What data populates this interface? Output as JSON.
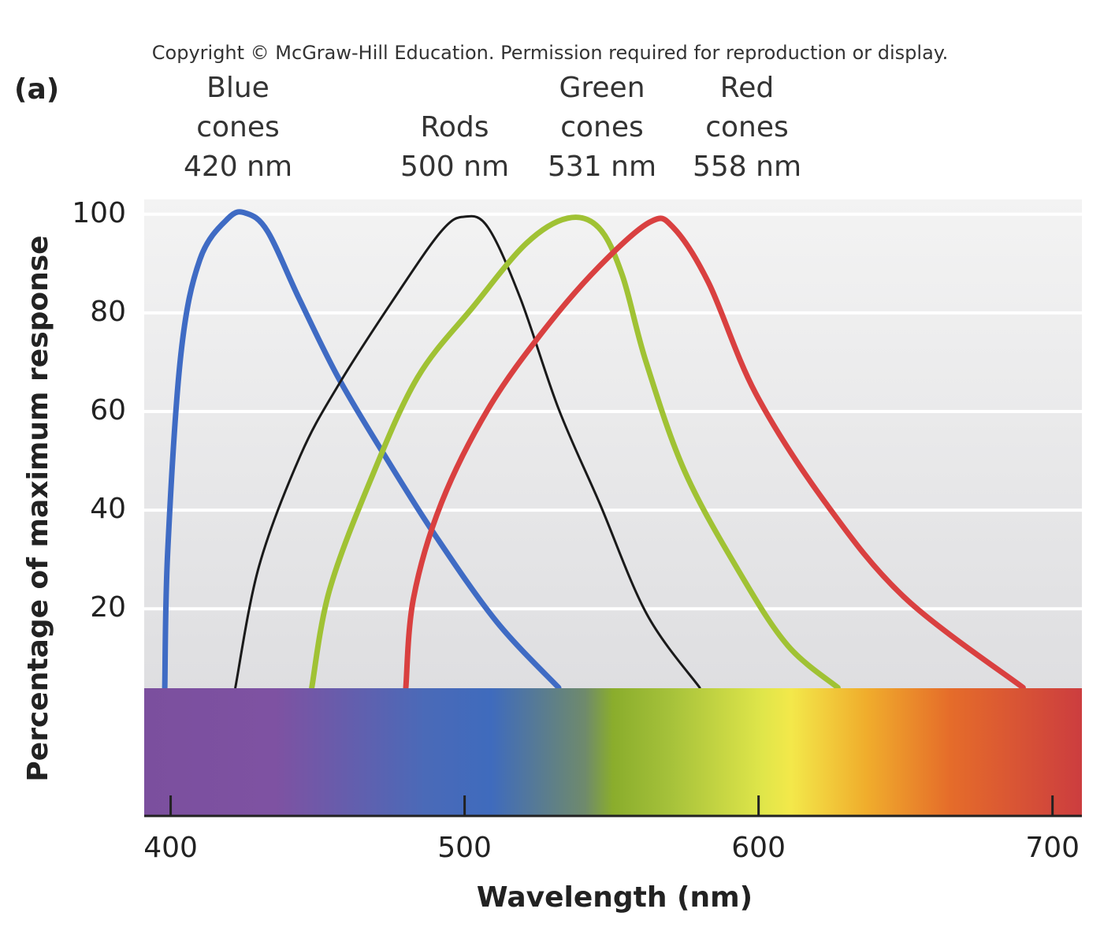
{
  "chart_data": {
    "type": "line",
    "copyright": "Copyright © McGraw-Hill Education. Permission required for reproduction or display.",
    "panel_label": "(a)",
    "annotations": [
      [
        "Blue",
        "cones",
        "420 nm"
      ],
      [
        "Rods",
        "500 nm"
      ],
      [
        "Green",
        "cones",
        "531 nm"
      ],
      [
        "Red",
        "cones",
        "558 nm"
      ]
    ],
    "x_label": "Wavelength (nm)",
    "y_label": "Percentage of maximum response",
    "xlim": [
      391,
      710
    ],
    "ylim": [
      -22,
      103
    ],
    "xticks": [
      400,
      500,
      600,
      700
    ],
    "yticks": [
      20,
      40,
      60,
      80,
      100
    ],
    "grid": true,
    "series": [
      {
        "name": "Blue cones",
        "color": "#3f6bc4",
        "width": 7,
        "x": [
          398,
          399,
          403.5,
          410,
          419.6,
          425.7,
          433,
          443.7,
          457,
          473,
          490,
          511,
          532
        ],
        "values": [
          4,
          31.7,
          71.7,
          90.9,
          99.2,
          100.2,
          96.5,
          82.9,
          66.9,
          50.9,
          34.9,
          17.3,
          4
        ]
      },
      {
        "name": "Rods",
        "color": "#1a1a1a",
        "width": 3,
        "x": [
          422,
          430,
          444,
          457,
          476,
          492,
          500,
          508,
          519,
          532,
          546,
          562,
          580
        ],
        "values": [
          4,
          28.5,
          50.9,
          65.3,
          82.9,
          96.5,
          99.5,
          97.3,
          82.9,
          60.5,
          41.3,
          18.9,
          4
        ]
      },
      {
        "name": "Green cones",
        "color": "#a0c234",
        "width": 7,
        "x": [
          448,
          454,
          468,
          484,
          503,
          521,
          535,
          545.6,
          553.6,
          561.7,
          575,
          594,
          610,
          627
        ],
        "values": [
          4,
          23.7,
          46.1,
          66.9,
          81.3,
          94.1,
          99.2,
          97.3,
          87.7,
          70.1,
          47.7,
          26.9,
          12.5,
          4
        ]
      },
      {
        "name": "Red cones",
        "color": "#d94040",
        "width": 7,
        "x": [
          480,
          482.6,
          492,
          508,
          527,
          545.6,
          563,
          571,
          583,
          599,
          623,
          650,
          690
        ],
        "values": [
          4,
          22.1,
          41.3,
          60.5,
          76.5,
          89.3,
          98.4,
          97.3,
          86.1,
          63.7,
          41.3,
          22.1,
          4
        ]
      }
    ]
  }
}
